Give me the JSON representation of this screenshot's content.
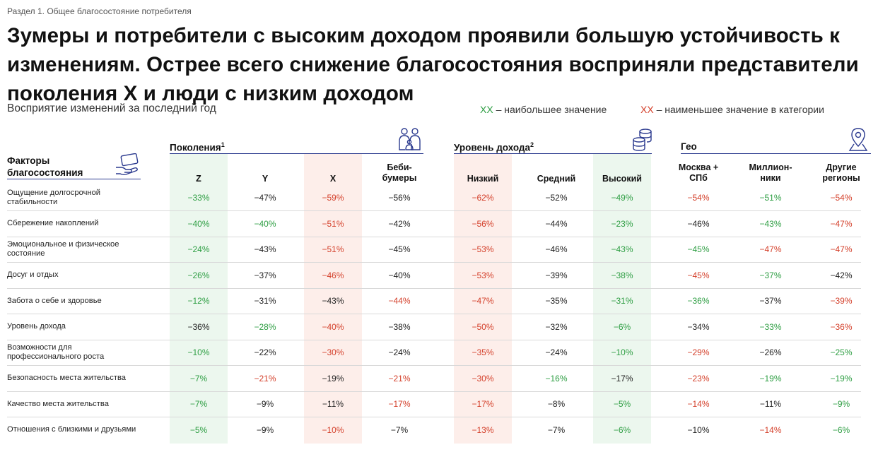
{
  "section": "Раздел 1. Общее благосостояние потребителя",
  "title": "Зумеры и потребители с высоким доходом проявили большую устойчивость к изменениям. Острее всего снижение благосостояния восприняли представители поколения X и люди с низким доходом",
  "subtitle": "Восприятие изменений за последний год",
  "legend": {
    "green_marker": "XX",
    "green_text": " – наибольшее значение",
    "red_marker": "XX",
    "red_text": " – наименьшее значение в категории"
  },
  "factors_header": "Факторы благосостояния",
  "groups": {
    "generations": {
      "label": "Поколения",
      "note": "1",
      "icon": "family-icon"
    },
    "income": {
      "label": "Уровень дохода",
      "note": "2",
      "icon": "coins-icon"
    },
    "geo": {
      "label": "Гео",
      "icon": "location-pin-icon"
    }
  },
  "columns": [
    "Z",
    "Y",
    "X",
    "Беби-\nбумеры",
    "Низкий",
    "Средний",
    "Высокий",
    "Москва +\nСПб",
    "Миллион-\nники",
    "Другие\nрегионы"
  ],
  "rows": [
    {
      "label": "Ощущение долгосрочной стабильности",
      "values": [
        "−33%",
        "−47%",
        "−59%",
        "−56%",
        "−62%",
        "−52%",
        "−49%",
        "−54%",
        "−51%",
        "−54%"
      ],
      "colors": [
        "g",
        "n",
        "r",
        "n",
        "r",
        "n",
        "g",
        "r",
        "g",
        "r"
      ]
    },
    {
      "label": "Сбережение накоплений",
      "values": [
        "−40%",
        "−40%",
        "−51%",
        "−42%",
        "−56%",
        "−44%",
        "−23%",
        "−46%",
        "−43%",
        "−47%"
      ],
      "colors": [
        "g",
        "g",
        "r",
        "n",
        "r",
        "n",
        "g",
        "n",
        "g",
        "r"
      ]
    },
    {
      "label": "Эмоциональное и физическое состояние",
      "values": [
        "−24%",
        "−43%",
        "−51%",
        "−45%",
        "−53%",
        "−46%",
        "−43%",
        "−45%",
        "−47%",
        "−47%"
      ],
      "colors": [
        "g",
        "n",
        "r",
        "n",
        "r",
        "n",
        "g",
        "g",
        "r",
        "r"
      ]
    },
    {
      "label": "Досуг и отдых",
      "values": [
        "−26%",
        "−37%",
        "−46%",
        "−40%",
        "−53%",
        "−39%",
        "−38%",
        "−45%",
        "−37%",
        "−42%"
      ],
      "colors": [
        "g",
        "n",
        "r",
        "n",
        "r",
        "n",
        "g",
        "r",
        "g",
        "n"
      ]
    },
    {
      "label": "Забота о себе и здоровье",
      "values": [
        "−12%",
        "−31%",
        "−43%",
        "−44%",
        "−47%",
        "−35%",
        "−31%",
        "−36%",
        "−37%",
        "−39%"
      ],
      "colors": [
        "g",
        "n",
        "n",
        "r",
        "r",
        "n",
        "g",
        "g",
        "n",
        "r"
      ]
    },
    {
      "label": "Уровень дохода",
      "values": [
        "−36%",
        "−28%",
        "−40%",
        "−38%",
        "−50%",
        "−32%",
        "−6%",
        "−34%",
        "−33%",
        "−36%"
      ],
      "colors": [
        "n",
        "g",
        "r",
        "n",
        "r",
        "n",
        "g",
        "n",
        "g",
        "r"
      ]
    },
    {
      "label": "Возможности для профессионального роста",
      "values": [
        "−10%",
        "−22%",
        "−30%",
        "−24%",
        "−35%",
        "−24%",
        "−10%",
        "−29%",
        "−26%",
        "−25%"
      ],
      "colors": [
        "g",
        "n",
        "r",
        "n",
        "r",
        "n",
        "g",
        "r",
        "n",
        "g"
      ]
    },
    {
      "label": "Безопасность места жительства",
      "values": [
        "−7%",
        "−21%",
        "−19%",
        "−21%",
        "−30%",
        "−16%",
        "−17%",
        "−23%",
        "−19%",
        "−19%"
      ],
      "colors": [
        "g",
        "r",
        "n",
        "r",
        "r",
        "g",
        "n",
        "r",
        "g",
        "g"
      ]
    },
    {
      "label": "Качество места жительства",
      "values": [
        "−7%",
        "−9%",
        "−11%",
        "−17%",
        "−17%",
        "−8%",
        "−5%",
        "−14%",
        "−11%",
        "−9%"
      ],
      "colors": [
        "g",
        "n",
        "n",
        "r",
        "r",
        "n",
        "g",
        "r",
        "n",
        "g"
      ]
    },
    {
      "label": "Отношения с близкими и друзьями",
      "values": [
        "−5%",
        "−9%",
        "−10%",
        "−7%",
        "−13%",
        "−7%",
        "−6%",
        "−10%",
        "−14%",
        "−6%"
      ],
      "colors": [
        "g",
        "n",
        "r",
        "n",
        "r",
        "n",
        "g",
        "n",
        "r",
        "g"
      ]
    }
  ],
  "colors": {
    "accent_line": "#2b3a8f",
    "max_green": "#2e9e43",
    "min_red": "#d4402b",
    "green_band": "#ecf7ee",
    "red_band": "#fdeeea"
  }
}
